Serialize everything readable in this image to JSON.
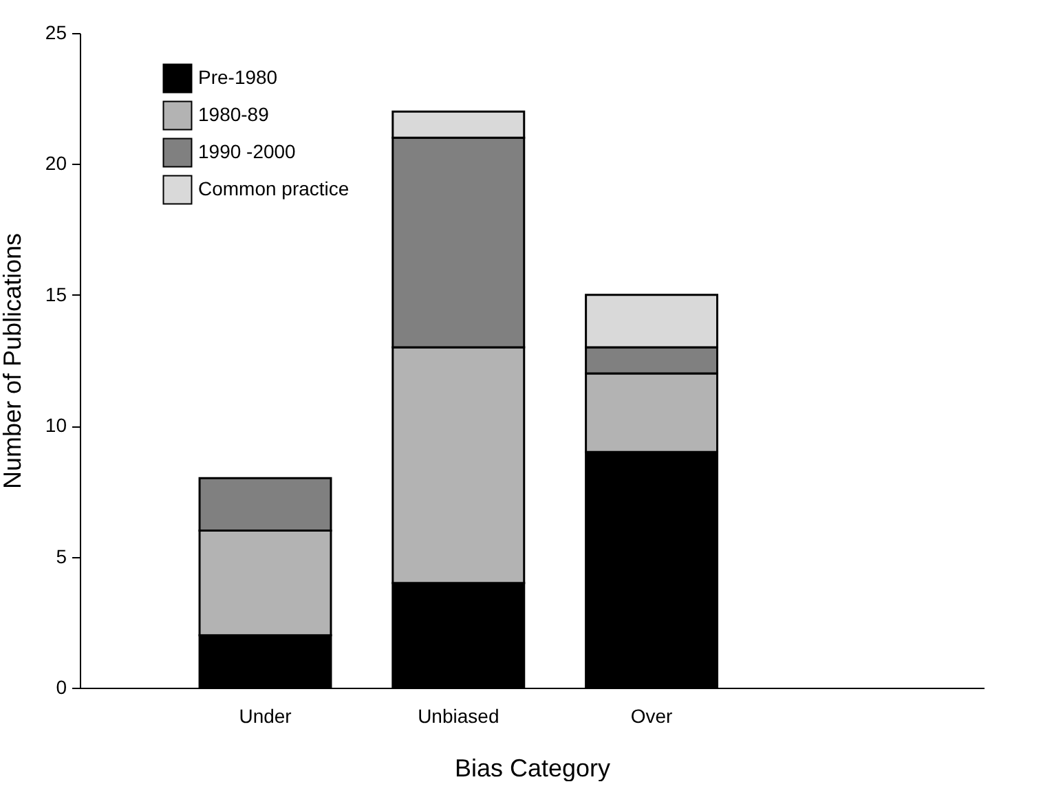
{
  "chart_data": {
    "type": "bar",
    "xlabel": "Bias Category",
    "ylabel": "Number of Publications",
    "categories": [
      "Under",
      "Unbiased",
      "Over"
    ],
    "stacked": true,
    "ylim": [
      0,
      25
    ],
    "yticks": [
      0,
      5,
      10,
      15,
      20,
      25
    ],
    "grid": false,
    "legend": "top left",
    "series": [
      {
        "name": "Pre-1980",
        "color": "#000000",
        "values": [
          2,
          4,
          9
        ]
      },
      {
        "name": "1980-89",
        "color": "#b3b3b3",
        "values": [
          4,
          9,
          3
        ]
      },
      {
        "name": "1990 -2000",
        "color": "#808080",
        "values": [
          2,
          8,
          1
        ]
      },
      {
        "name": "Common practice",
        "color": "#d9d9d9",
        "values": [
          null,
          1,
          2
        ]
      }
    ]
  }
}
